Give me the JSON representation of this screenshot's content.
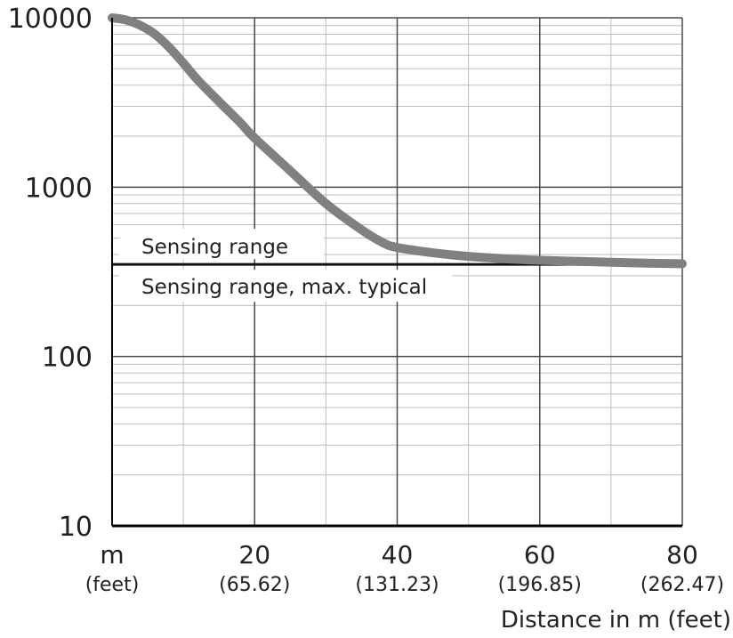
{
  "chart_data": {
    "type": "line",
    "y_scale": "log",
    "xlim": [
      0,
      80
    ],
    "ylim": [
      10,
      10000
    ],
    "grid": true,
    "x_ticks": [
      {
        "value": 20,
        "label": "20",
        "sublabel": "(65.62)"
      },
      {
        "value": 40,
        "label": "40",
        "sublabel": "(131.23)"
      },
      {
        "value": 60,
        "label": "60",
        "sublabel": "(196.85)"
      },
      {
        "value": 80,
        "label": "80",
        "sublabel": "(262.47)"
      }
    ],
    "x_unit_label": "m",
    "x_unit_sublabel": "(feet)",
    "y_ticks": [
      {
        "value": 10,
        "label": "10"
      },
      {
        "value": 100,
        "label": "100"
      },
      {
        "value": 1000,
        "label": "1000"
      },
      {
        "value": 10000,
        "label": "10000"
      }
    ],
    "xlabel": "Distance in m (feet)",
    "ylabel": "",
    "curve": {
      "color": "#808080",
      "points": [
        [
          0,
          10000
        ],
        [
          2,
          9700
        ],
        [
          4,
          9000
        ],
        [
          6,
          8000
        ],
        [
          8,
          6700
        ],
        [
          10,
          5400
        ],
        [
          12,
          4300
        ],
        [
          15,
          3200
        ],
        [
          18,
          2400
        ],
        [
          20,
          1950
        ],
        [
          25,
          1250
        ],
        [
          30,
          800
        ],
        [
          35,
          560
        ],
        [
          38,
          470
        ],
        [
          40,
          440
        ],
        [
          45,
          410
        ],
        [
          50,
          390
        ],
        [
          55,
          378
        ],
        [
          60,
          370
        ],
        [
          65,
          365
        ],
        [
          70,
          360
        ],
        [
          75,
          356
        ],
        [
          80,
          353
        ]
      ]
    },
    "reference_line": {
      "value": 350,
      "color": "#111111",
      "label_above": "Sensing range",
      "label_below": "Sensing range, max. typical"
    }
  }
}
